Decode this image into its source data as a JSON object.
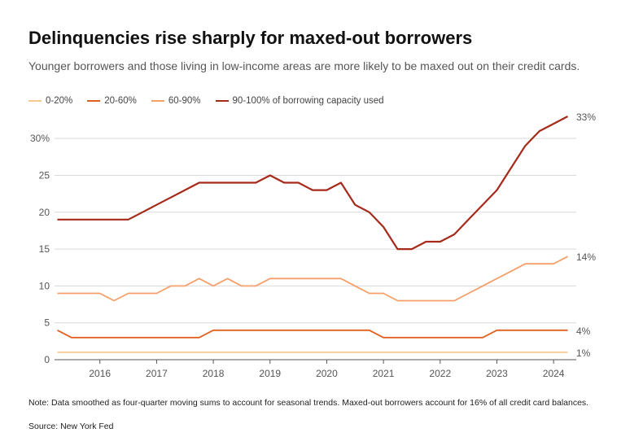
{
  "header": {
    "title": "Delinquencies rise sharply for maxed-out borrowers",
    "subtitle": "Younger borrowers and those living in low-income areas are more likely to be maxed out on their credit cards."
  },
  "legend": [
    {
      "label": "0-20%",
      "color": "#f7c98f"
    },
    {
      "label": "20-60%",
      "color": "#e06020"
    },
    {
      "label": "60-90%",
      "color": "#f5a06a"
    },
    {
      "label": "90-100% of borrowing capacity used",
      "color": "#a52a1a"
    }
  ],
  "footer": {
    "note": "Note: Data smoothed as four-quarter moving sums to account for seasonal trends. Maxed-out borrowers account for 16% of all credit card balances.",
    "source": "Source: New York Fed"
  },
  "chart_data": {
    "type": "line",
    "xlim": [
      2015.2,
      2024.4
    ],
    "ylim": [
      0,
      33
    ],
    "yticks": [
      0,
      5,
      10,
      15,
      20,
      25,
      30
    ],
    "ytick_labels": [
      "0",
      "5",
      "10",
      "15",
      "20",
      "25",
      "30%"
    ],
    "xticks": [
      2016,
      2017,
      2018,
      2019,
      2020,
      2021,
      2022,
      2023,
      2024
    ],
    "xtick_labels": [
      "2016",
      "2017",
      "2018",
      "2019",
      "2020",
      "2021",
      "2022",
      "2023",
      "2024"
    ],
    "grid": "horizontal",
    "x": [
      2015.25,
      2015.5,
      2015.75,
      2016.0,
      2016.25,
      2016.5,
      2016.75,
      2017.0,
      2017.25,
      2017.5,
      2017.75,
      2018.0,
      2018.25,
      2018.5,
      2018.75,
      2019.0,
      2019.25,
      2019.5,
      2019.75,
      2020.0,
      2020.25,
      2020.5,
      2020.75,
      2021.0,
      2021.25,
      2021.5,
      2021.75,
      2022.0,
      2022.25,
      2022.5,
      2022.75,
      2023.0,
      2023.25,
      2023.5,
      2023.75,
      2024.0,
      2024.25
    ],
    "series": [
      {
        "name": "0-20%",
        "color": "#f7c98f",
        "end_label": "1%",
        "values": [
          1,
          1,
          1,
          1,
          1,
          1,
          1,
          1,
          1,
          1,
          1,
          1,
          1,
          1,
          1,
          1,
          1,
          1,
          1,
          1,
          1,
          1,
          1,
          1,
          1,
          1,
          1,
          1,
          1,
          1,
          1,
          1,
          1,
          1,
          1,
          1,
          1
        ]
      },
      {
        "name": "20-60%",
        "color": "#e06020",
        "end_label": "4%",
        "values": [
          4,
          3,
          3,
          3,
          3,
          3,
          3,
          3,
          3,
          3,
          3,
          4,
          4,
          4,
          4,
          4,
          4,
          4,
          4,
          4,
          4,
          4,
          4,
          3,
          3,
          3,
          3,
          3,
          3,
          3,
          3,
          4,
          4,
          4,
          4,
          4,
          4
        ]
      },
      {
        "name": "60-90%",
        "color": "#f5a06a",
        "end_label": "14%",
        "values": [
          9,
          9,
          9,
          9,
          8,
          9,
          9,
          9,
          10,
          10,
          11,
          10,
          11,
          10,
          10,
          11,
          11,
          11,
          11,
          11,
          11,
          10,
          9,
          9,
          8,
          8,
          8,
          8,
          8,
          9,
          10,
          11,
          12,
          13,
          13,
          13,
          14
        ]
      },
      {
        "name": "90-100% of borrowing capacity used",
        "color": "#a52a1a",
        "end_label": "33%",
        "values": [
          19,
          19,
          19,
          19,
          19,
          19,
          20,
          21,
          22,
          23,
          24,
          24,
          24,
          24,
          24,
          25,
          24,
          24,
          23,
          23,
          24,
          21,
          20,
          18,
          15,
          15,
          16,
          16,
          17,
          19,
          21,
          23,
          26,
          29,
          31,
          32,
          33
        ]
      }
    ]
  }
}
